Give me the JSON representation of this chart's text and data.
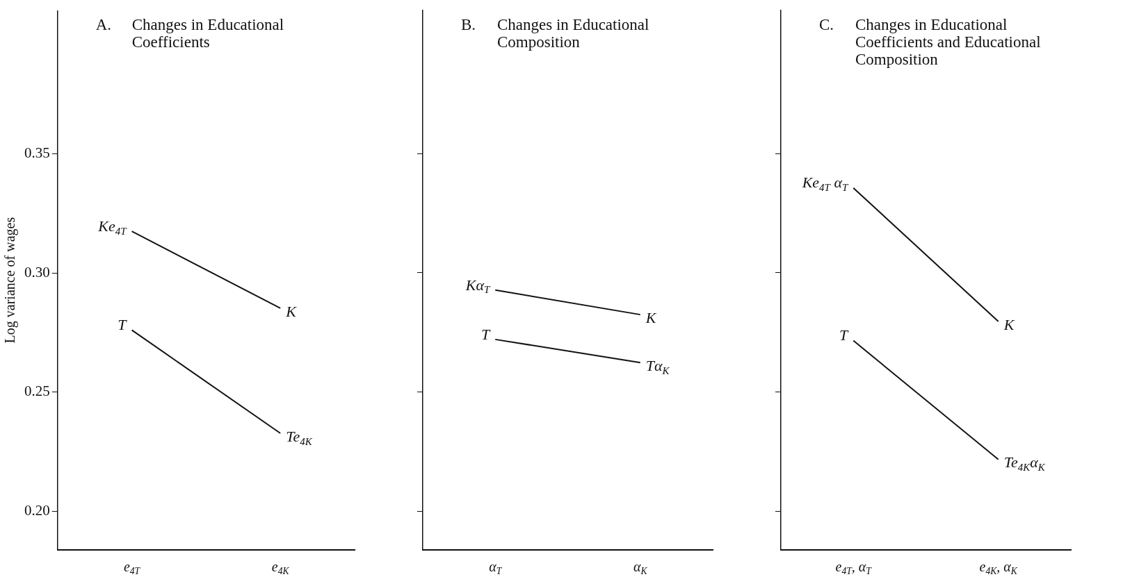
{
  "chart_data": [
    {
      "type": "line",
      "title": "A. Changes in Educational Coefficients",
      "ylabel": "Log variance of wages",
      "categories": [
        "e$_{4T}$",
        "e$_{4K}$"
      ],
      "series": [
        {
          "color": "#111111",
          "values": [
            0.3175,
            0.2853
          ]
        },
        {
          "color": "#111111",
          "values": [
            0.2761,
            0.2328
          ]
        }
      ],
      "annotations": [
        {
          "text": "Ke$_{4T}$",
          "x": "e$_{4T}$",
          "y": 0.3175
        },
        {
          "text": "K",
          "x": "e$_{4K}$",
          "y": 0.2853
        },
        {
          "text": "T",
          "x": "e$_{4T}$",
          "y": 0.2761
        },
        {
          "text": "Te$_{4K}$",
          "x": "e$_{4K}$",
          "y": 0.2328
        }
      ],
      "ylim": [
        0.184,
        0.41
      ],
      "yticks": [
        {
          "value": 0.2,
          "label": "0.20"
        },
        {
          "value": 0.25,
          "label": "0.25"
        },
        {
          "value": 0.3,
          "label": "0.30"
        },
        {
          "value": 0.35,
          "label": "0.35"
        }
      ],
      "grid": false,
      "legend": false,
      "marker": "none"
    },
    {
      "type": "line",
      "title": "B. Changes in Educational Composition",
      "categories": [
        "α$_{T}$",
        "α$_{K}$"
      ],
      "series": [
        {
          "color": "#111111",
          "values": [
            0.2928,
            0.2825
          ]
        },
        {
          "color": "#111111",
          "values": [
            0.2721,
            0.2624
          ]
        }
      ],
      "annotations": [
        {
          "text": "Kα$_{T}$",
          "x": "α$_{T}$",
          "y": 0.2928
        },
        {
          "text": "K",
          "x": "α$_{K}$",
          "y": 0.2825
        },
        {
          "text": "T",
          "x": "α$_{T}$",
          "y": 0.2721
        },
        {
          "text": "Tα$_{K}$",
          "x": "α$_{K}$",
          "y": 0.2624
        }
      ],
      "ylim": [
        0.184,
        0.41
      ],
      "yticks": [
        {
          "value": 0.2,
          "label": null
        },
        {
          "value": 0.25,
          "label": null
        },
        {
          "value": 0.3,
          "label": null
        },
        {
          "value": 0.35,
          "label": null
        }
      ],
      "tick_labels": "x",
      "grid": false,
      "legend": false,
      "marker": "none"
    },
    {
      "type": "line",
      "title": "C. Changes in Educational Coefficients and Educational Composition",
      "categories": [
        "e$_{4T}$, α$_{T}$",
        "e$_{4K}$, α$_{K}$"
      ],
      "series": [
        {
          "color": "#111111",
          "values": [
            0.3356,
            0.2796
          ]
        },
        {
          "color": "#111111",
          "values": [
            0.2716,
            0.2218
          ]
        }
      ],
      "annotations": [
        {
          "text": "Ke$_{4T}$ α$_{T}$",
          "x": "e$_{4T}$, α$_{T}$",
          "y": 0.3356
        },
        {
          "text": "K",
          "x": "e$_{4K}$, α$_{K}$",
          "y": 0.2796
        },
        {
          "text": "T",
          "x": "e$_{4T}$, α$_{T}$",
          "y": 0.2716
        },
        {
          "text": "Te$_{4K}$α$_{K}$",
          "x": "e$_{4K}$, α$_{K}$",
          "y": 0.2218
        }
      ],
      "ylim": [
        0.184,
        0.41
      ],
      "yticks": [
        {
          "value": 0.2,
          "label": null
        },
        {
          "value": 0.25,
          "label": null
        },
        {
          "value": 0.3,
          "label": null
        },
        {
          "value": 0.35,
          "label": null
        }
      ],
      "tick_labels": "x",
      "grid": false,
      "legend": false,
      "marker": "none"
    }
  ]
}
